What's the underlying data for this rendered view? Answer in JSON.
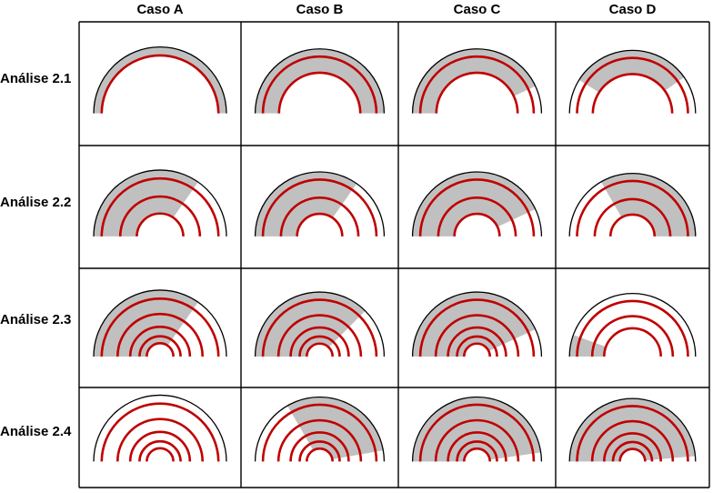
{
  "columns": [
    "Caso A",
    "Caso B",
    "Caso C",
    "Caso D"
  ],
  "rows": [
    "Análise 2.1",
    "Análise 2.2",
    "Análise 2.3",
    "Análise 2.4"
  ],
  "colors": {
    "grid_line": "#000000",
    "outer_arc": "#000000",
    "red_arc": "#c00000",
    "shade": "#c0c0c0"
  },
  "cells": [
    [
      {
        "red_rings": [
          0.88
        ],
        "shade_from_deg": 180,
        "shade_to_deg": 0
      },
      {
        "red_rings": [
          0.88,
          0.63
        ],
        "shade_from_deg": 180,
        "shade_to_deg": 0
      },
      {
        "red_rings": [
          0.88,
          0.63
        ],
        "shade_from_deg": 180,
        "shade_to_deg": 25
      },
      {
        "red_rings": [
          0.88,
          0.63
        ],
        "shade_from_deg": 180,
        "shade_to_deg": 35,
        "shade_starts_at_deg": 148
      }
    ],
    [
      {
        "red_rings": [
          0.88,
          0.6,
          0.35
        ],
        "shade_from_deg": 180,
        "shade_to_deg": 55
      },
      {
        "red_rings": [
          0.88,
          0.6,
          0.35
        ],
        "shade_from_deg": 180,
        "shade_to_deg": 55
      },
      {
        "red_rings": [
          0.88,
          0.6,
          0.35
        ],
        "shade_from_deg": 180,
        "shade_to_deg": 25
      },
      {
        "red_rings": [
          0.88,
          0.6,
          0.35
        ],
        "shade_from_deg": 180,
        "shade_to_deg": 0,
        "shade_starts_at_deg": 120
      }
    ],
    [
      {
        "red_rings": [
          0.88,
          0.64,
          0.45,
          0.31,
          0.2
        ],
        "shade_from_deg": 180,
        "shade_to_deg": 55
      },
      {
        "red_rings": [
          0.88,
          0.64,
          0.45,
          0.31,
          0.2
        ],
        "shade_from_deg": 180,
        "shade_to_deg": 45
      },
      {
        "red_rings": [
          0.88,
          0.64,
          0.45,
          0.31,
          0.2
        ],
        "shade_from_deg": 180,
        "shade_to_deg": 25
      },
      {
        "red_rings": [
          0.88,
          0.64,
          0.45
        ],
        "shade_from_deg": 180,
        "shade_to_deg": 160
      }
    ],
    [
      {
        "red_rings": [
          0.88,
          0.64,
          0.45,
          0.31,
          0.2
        ],
        "shade_from_deg": 180,
        "shade_to_deg": 180
      },
      {
        "red_rings": [
          0.88,
          0.64,
          0.45,
          0.31,
          0.2
        ],
        "shade_from_deg": 120,
        "shade_to_deg": 10
      },
      {
        "red_rings": [
          0.88,
          0.64,
          0.45,
          0.31,
          0.2
        ],
        "shade_from_deg": 180,
        "shade_to_deg": 8
      },
      {
        "red_rings": [
          0.88,
          0.64,
          0.45,
          0.31,
          0.2
        ],
        "shade_from_deg": 180,
        "shade_to_deg": 5
      }
    ]
  ]
}
